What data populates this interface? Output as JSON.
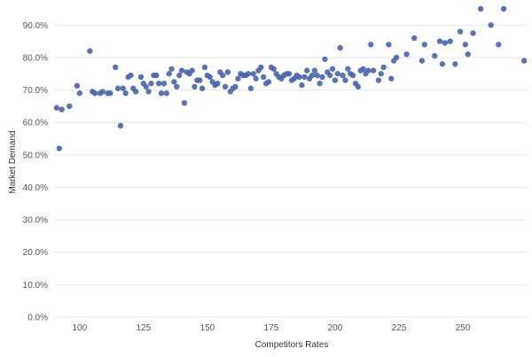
{
  "chart_data": {
    "type": "scatter",
    "xlabel": "Competitors Rates",
    "ylabel": "Market Demand",
    "xlim": [
      90,
      275
    ],
    "ylim": [
      0,
      0.95
    ],
    "x_ticks": [
      100,
      125,
      150,
      175,
      200,
      225,
      250
    ],
    "x_tick_labels": [
      "100",
      "125",
      "150",
      "175",
      "200",
      "225",
      "250"
    ],
    "y_ticks": [
      0,
      0.1,
      0.2,
      0.3,
      0.4,
      0.5,
      0.6,
      0.7,
      0.8,
      0.9
    ],
    "y_tick_labels": [
      "0.0%",
      "10.0%",
      "20.0%",
      "30.0%",
      "40.0%",
      "50.0%",
      "60.0%",
      "70.0%",
      "80.0%",
      "90.0%"
    ],
    "grid": "horizontal",
    "point_color": "#4a63a8",
    "points": [
      [
        91,
        0.645
      ],
      [
        92,
        0.52
      ],
      [
        93,
        0.64
      ],
      [
        96,
        0.65
      ],
      [
        99,
        0.713
      ],
      [
        100,
        0.69
      ],
      [
        104,
        0.82
      ],
      [
        105,
        0.695
      ],
      [
        106,
        0.69
      ],
      [
        108,
        0.69
      ],
      [
        109,
        0.695
      ],
      [
        111,
        0.69
      ],
      [
        112,
        0.69
      ],
      [
        114,
        0.77
      ],
      [
        115,
        0.705
      ],
      [
        116,
        0.59
      ],
      [
        117,
        0.705
      ],
      [
        118,
        0.69
      ],
      [
        119,
        0.74
      ],
      [
        120,
        0.745
      ],
      [
        121,
        0.705
      ],
      [
        122,
        0.695
      ],
      [
        124,
        0.74
      ],
      [
        125,
        0.72
      ],
      [
        126,
        0.71
      ],
      [
        127,
        0.695
      ],
      [
        128,
        0.72
      ],
      [
        129,
        0.745
      ],
      [
        130,
        0.745
      ],
      [
        131,
        0.72
      ],
      [
        132,
        0.69
      ],
      [
        133,
        0.72
      ],
      [
        134,
        0.69
      ],
      [
        135,
        0.75
      ],
      [
        136,
        0.765
      ],
      [
        137,
        0.725
      ],
      [
        138,
        0.71
      ],
      [
        139,
        0.745
      ],
      [
        140,
        0.76
      ],
      [
        141,
        0.66
      ],
      [
        142,
        0.755
      ],
      [
        143,
        0.75
      ],
      [
        144,
        0.76
      ],
      [
        145,
        0.71
      ],
      [
        146,
        0.73
      ],
      [
        147,
        0.73
      ],
      [
        148,
        0.705
      ],
      [
        149,
        0.77
      ],
      [
        150,
        0.745
      ],
      [
        151,
        0.74
      ],
      [
        152,
        0.725
      ],
      [
        153,
        0.715
      ],
      [
        154,
        0.72
      ],
      [
        155,
        0.755
      ],
      [
        156,
        0.745
      ],
      [
        157,
        0.71
      ],
      [
        158,
        0.755
      ],
      [
        159,
        0.695
      ],
      [
        160,
        0.705
      ],
      [
        161,
        0.71
      ],
      [
        162,
        0.735
      ],
      [
        163,
        0.75
      ],
      [
        164,
        0.745
      ],
      [
        165,
        0.745
      ],
      [
        166,
        0.75
      ],
      [
        167,
        0.705
      ],
      [
        168,
        0.75
      ],
      [
        169,
        0.735
      ],
      [
        170,
        0.76
      ],
      [
        171,
        0.77
      ],
      [
        172,
        0.74
      ],
      [
        173,
        0.72
      ],
      [
        174,
        0.725
      ],
      [
        175,
        0.77
      ],
      [
        176,
        0.765
      ],
      [
        177,
        0.75
      ],
      [
        178,
        0.74
      ],
      [
        179,
        0.735
      ],
      [
        180,
        0.745
      ],
      [
        181,
        0.75
      ],
      [
        182,
        0.75
      ],
      [
        183,
        0.73
      ],
      [
        184,
        0.735
      ],
      [
        185,
        0.745
      ],
      [
        186,
        0.74
      ],
      [
        187,
        0.715
      ],
      [
        188,
        0.74
      ],
      [
        189,
        0.76
      ],
      [
        190,
        0.735
      ],
      [
        191,
        0.745
      ],
      [
        192,
        0.76
      ],
      [
        193,
        0.745
      ],
      [
        194,
        0.72
      ],
      [
        195,
        0.74
      ],
      [
        196,
        0.795
      ],
      [
        197,
        0.755
      ],
      [
        198,
        0.745
      ],
      [
        199,
        0.765
      ],
      [
        200,
        0.73
      ],
      [
        201,
        0.75
      ],
      [
        202,
        0.83
      ],
      [
        203,
        0.745
      ],
      [
        204,
        0.73
      ],
      [
        205,
        0.765
      ],
      [
        206,
        0.75
      ],
      [
        207,
        0.745
      ],
      [
        208,
        0.72
      ],
      [
        209,
        0.71
      ],
      [
        210,
        0.76
      ],
      [
        211,
        0.765
      ],
      [
        212,
        0.75
      ],
      [
        213,
        0.76
      ],
      [
        214,
        0.84
      ],
      [
        215,
        0.76
      ],
      [
        217,
        0.73
      ],
      [
        218,
        0.75
      ],
      [
        219,
        0.77
      ],
      [
        221,
        0.84
      ],
      [
        222,
        0.735
      ],
      [
        223,
        0.79
      ],
      [
        224,
        0.8
      ],
      [
        228,
        0.81
      ],
      [
        231,
        0.86
      ],
      [
        234,
        0.79
      ],
      [
        235,
        0.84
      ],
      [
        239,
        0.805
      ],
      [
        241,
        0.85
      ],
      [
        242,
        0.78
      ],
      [
        243,
        0.845
      ],
      [
        245,
        0.85
      ],
      [
        247,
        0.78
      ],
      [
        249,
        0.88
      ],
      [
        251,
        0.84
      ],
      [
        252,
        0.81
      ],
      [
        254,
        0.875
      ],
      [
        257,
        0.95
      ],
      [
        261,
        0.9
      ],
      [
        264,
        0.84
      ],
      [
        266,
        0.95
      ],
      [
        274,
        0.79
      ]
    ]
  }
}
